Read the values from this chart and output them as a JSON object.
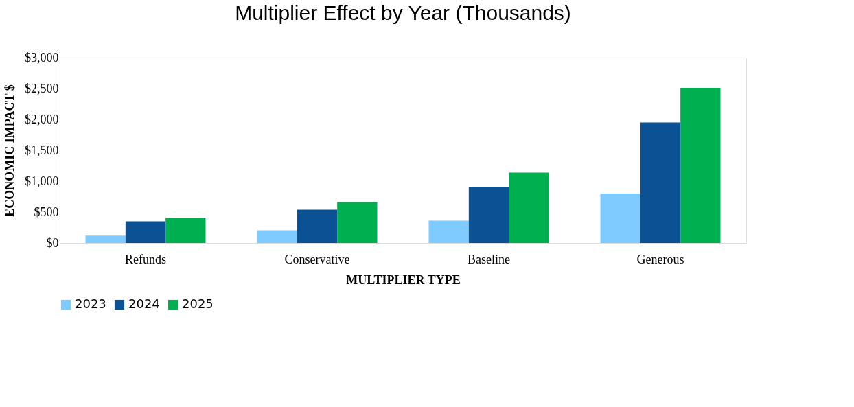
{
  "chart_data": {
    "type": "bar",
    "title": "Multiplier Effect by Year (Thousands)",
    "xlabel": "MULTIPLIER TYPE",
    "ylabel": "ECONOMIC IMPACT $",
    "categories": [
      "Refunds",
      "Conservative",
      "Baseline",
      "Generous"
    ],
    "series": [
      {
        "name": "2023",
        "color": "#7fcbff",
        "values": [
          120,
          205,
          360,
          800
        ]
      },
      {
        "name": "2024",
        "color": "#0a5294",
        "values": [
          350,
          540,
          910,
          1950
        ]
      },
      {
        "name": "2025",
        "color": "#00b050",
        "values": [
          410,
          660,
          1140,
          2510
        ]
      }
    ],
    "ylim": [
      0,
      3000
    ],
    "yticks": [
      {
        "value": 0,
        "label": "$0"
      },
      {
        "value": 500,
        "label": "$500"
      },
      {
        "value": 1000,
        "label": "$1,000"
      },
      {
        "value": 1500,
        "label": "$1,500"
      },
      {
        "value": 2000,
        "label": "$2,000"
      },
      {
        "value": 2500,
        "label": "$2,500"
      },
      {
        "value": 3000,
        "label": "$3,000"
      }
    ],
    "grid": false,
    "legend": "bottom"
  }
}
